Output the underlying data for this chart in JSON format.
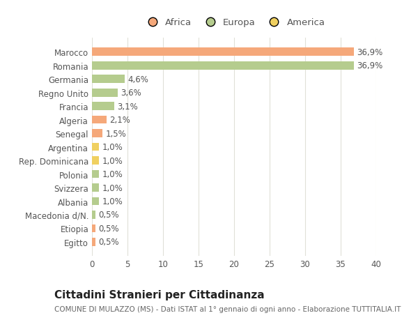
{
  "categories": [
    "Egitto",
    "Etiopia",
    "Macedonia d/N.",
    "Albania",
    "Svizzera",
    "Polonia",
    "Rep. Dominicana",
    "Argentina",
    "Senegal",
    "Algeria",
    "Francia",
    "Regno Unito",
    "Germania",
    "Romania",
    "Marocco"
  ],
  "values": [
    0.5,
    0.5,
    0.5,
    1.0,
    1.0,
    1.0,
    1.0,
    1.0,
    1.5,
    2.1,
    3.1,
    3.6,
    4.6,
    36.9,
    36.9
  ],
  "labels": [
    "0,5%",
    "0,5%",
    "0,5%",
    "1,0%",
    "1,0%",
    "1,0%",
    "1,0%",
    "1,0%",
    "1,5%",
    "2,1%",
    "3,1%",
    "3,6%",
    "4,6%",
    "36,9%",
    "36,9%"
  ],
  "colors": [
    "#f5a87a",
    "#f5a87a",
    "#b5cc8e",
    "#b5cc8e",
    "#b5cc8e",
    "#b5cc8e",
    "#f0d060",
    "#f0d060",
    "#f5a87a",
    "#f5a87a",
    "#b5cc8e",
    "#b5cc8e",
    "#b5cc8e",
    "#b5cc8e",
    "#f5a87a"
  ],
  "legend_labels": [
    "Africa",
    "Europa",
    "America"
  ],
  "legend_colors": [
    "#f5a87a",
    "#b5cc8e",
    "#f0d060"
  ],
  "title": "Cittadini Stranieri per Cittadinanza",
  "subtitle": "COMUNE DI MULAZZO (MS) - Dati ISTAT al 1° gennaio di ogni anno - Elaborazione TUTTITALIA.IT",
  "xlim": [
    0,
    40
  ],
  "xticks": [
    0,
    5,
    10,
    15,
    20,
    25,
    30,
    35,
    40
  ],
  "background_color": "#ffffff",
  "grid_color": "#e0e0d8",
  "bar_height": 0.6,
  "label_fontsize": 8.5,
  "tick_fontsize": 8.5,
  "title_fontsize": 11,
  "subtitle_fontsize": 7.5
}
